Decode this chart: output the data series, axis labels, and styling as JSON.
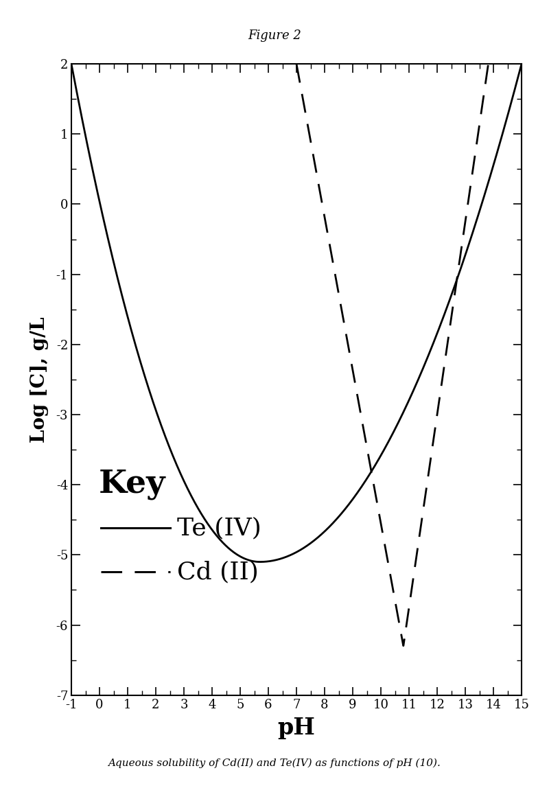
{
  "title": "Figure 2",
  "xlabel": "pH",
  "ylabel": "Log [C], g/L",
  "caption": "Aqueous solubility of Cd(II) and Te(IV) as functions of pH (10).",
  "xlim": [
    -1,
    15
  ],
  "ylim": [
    -7,
    2
  ],
  "xticks": [
    -1,
    0,
    1,
    2,
    3,
    4,
    5,
    6,
    7,
    8,
    9,
    10,
    11,
    12,
    13,
    14,
    15
  ],
  "yticks": [
    -7,
    -6,
    -5,
    -4,
    -3,
    -2,
    -1,
    0,
    1,
    2
  ],
  "background_color": "#ffffff",
  "line_color": "#000000",
  "key_label": "Key",
  "te_label": "Te (IV)",
  "cd_label": "Cd (II)"
}
